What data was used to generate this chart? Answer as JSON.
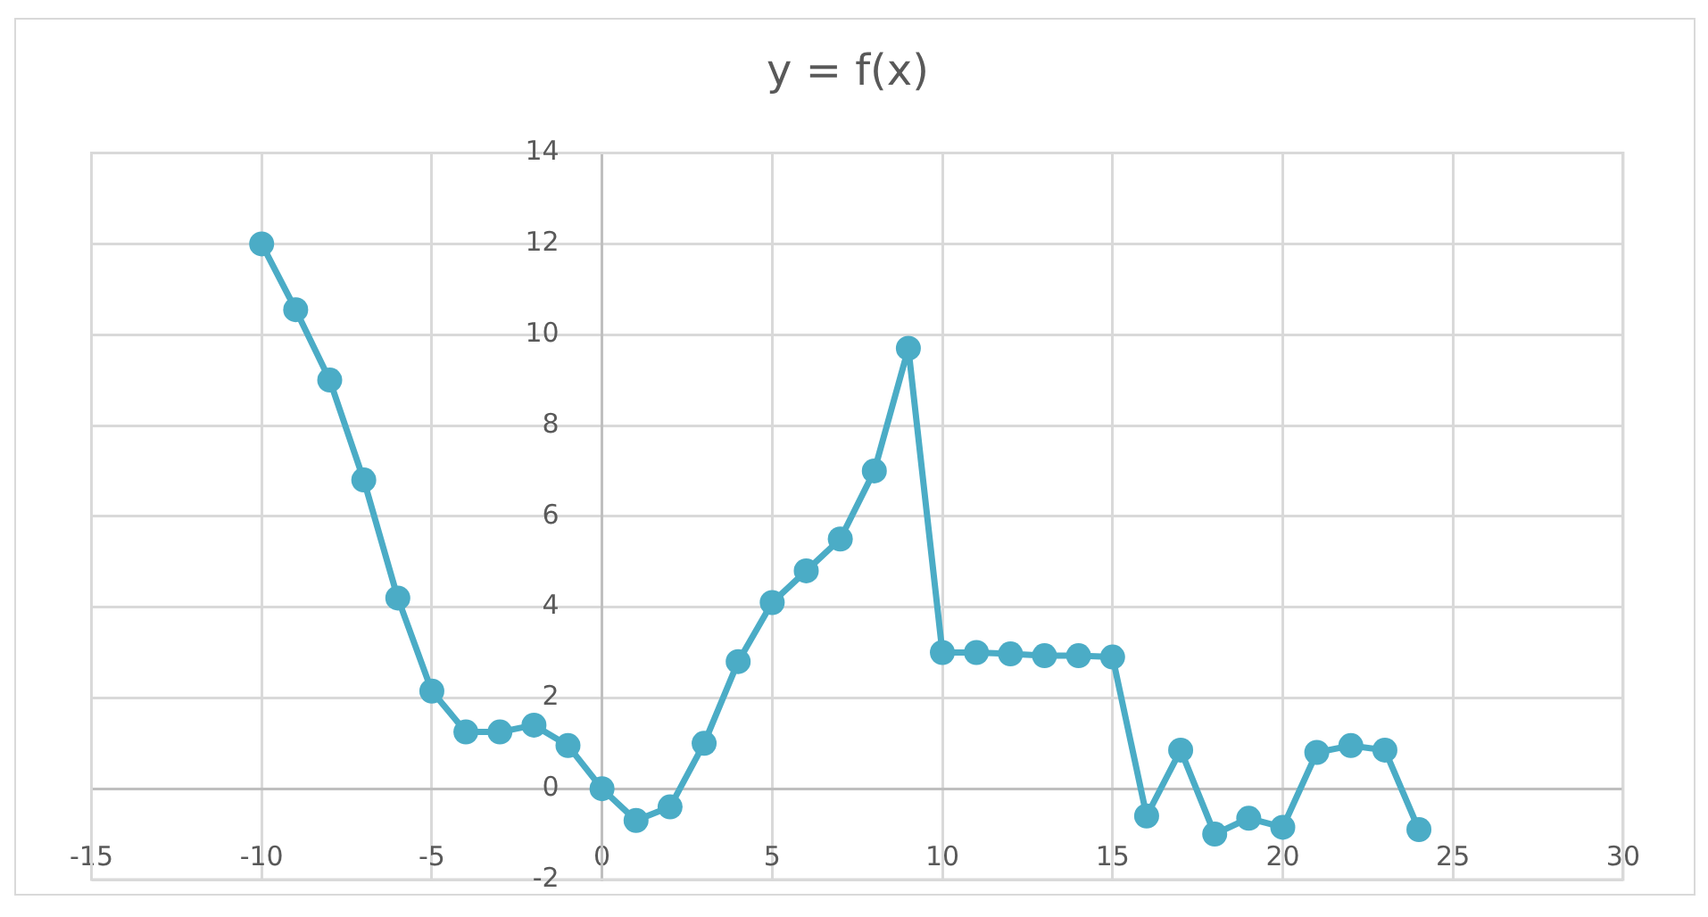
{
  "chart_data": {
    "type": "line",
    "title": "y = f(x)",
    "x": [
      -10,
      -9,
      -8,
      -7,
      -6,
      -5,
      -4,
      -3,
      -2,
      -1,
      0,
      1,
      2,
      3,
      4,
      5,
      6,
      7,
      8,
      9,
      10,
      11,
      12,
      13,
      14,
      15,
      16,
      17,
      18,
      19,
      20,
      21,
      22,
      23,
      24
    ],
    "series": [
      {
        "color": "#4bacc6",
        "values": [
          12,
          10.55,
          9,
          6.8,
          4.2,
          2.15,
          1.25,
          1.25,
          1.4,
          0.95,
          0,
          -0.7,
          -0.4,
          1,
          2.8,
          4.1,
          4.8,
          5.5,
          7,
          9.7,
          3,
          3,
          2.97,
          2.93,
          2.93,
          2.9,
          -0.6,
          0.85,
          -1,
          -0.65,
          -0.85,
          0.8,
          0.95,
          0.85,
          -0.9
        ]
      }
    ],
    "xlim": [
      -15,
      30
    ],
    "xticks": [
      -15,
      -10,
      -5,
      0,
      5,
      10,
      15,
      20,
      25,
      30
    ],
    "ylim": [
      -2,
      14
    ],
    "yticks": [
      -2,
      0,
      2,
      4,
      6,
      8,
      10,
      12,
      14
    ],
    "grid": true,
    "legend": false,
    "marker": "circle",
    "line_style": "solid"
  }
}
